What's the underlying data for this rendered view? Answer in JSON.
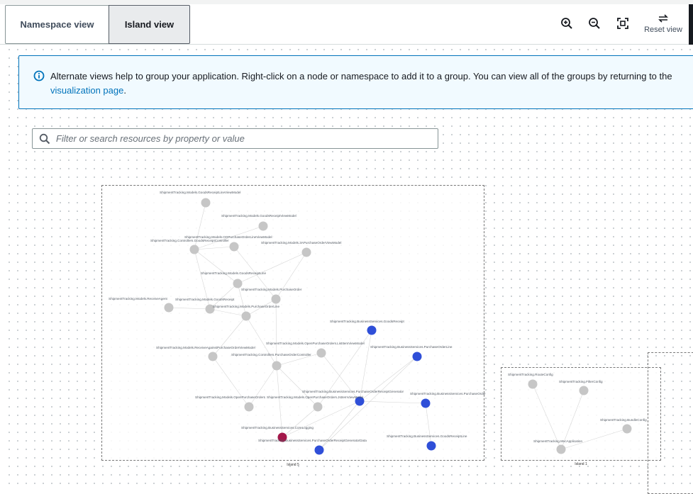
{
  "tabs": [
    {
      "label": "Namespace view",
      "selected": false
    },
    {
      "label": "Island view",
      "selected": true
    }
  ],
  "toolbar": {
    "zoom_in": "zoom-in-icon",
    "zoom_out": "zoom-out-icon",
    "fit": "fit-view-icon",
    "reset_label": "Reset view"
  },
  "info": {
    "text": "Alternate views help to group your application. Right-click on a node or namespace to add it to a group. You can view all of the groups by returning to the",
    "link": "visualization page",
    "suffix": "."
  },
  "search": {
    "placeholder": "Filter or search resources by property or value",
    "value": ""
  },
  "colors": {
    "accent": "#0073bb",
    "node_gray": "#c6c6c6",
    "node_blue": "#2f4fd8",
    "node_red": "#a3174a"
  },
  "islands": [
    {
      "name": "Island 5",
      "nodes": [
        {
          "label": "ShipmentTracking.Models.GoodsReceiptLineViewModel",
          "color": "gray"
        },
        {
          "label": "ShipmentTracking.Models.GoodsReceiptViewModel",
          "color": "gray"
        },
        {
          "label": "ShipmentTracking.Models.OOPurchaseOrderLineViewModel",
          "color": "gray"
        },
        {
          "label": "ShipmentTracking.Controllers.GoodsReceiptController",
          "color": "gray"
        },
        {
          "label": "ShipmentTracking.Models.3APurchaseOrderViewModel",
          "color": "gray"
        },
        {
          "label": "ShipmentTracking.Models.GoodsReceiptLine",
          "color": "gray"
        },
        {
          "label": "ShipmentTracking.Models.PurchaseOrder",
          "color": "gray"
        },
        {
          "label": "ShipmentTracking.Models.ReceiveAgent",
          "color": "gray"
        },
        {
          "label": "ShipmentTracking.Models.GoodsReceipt",
          "color": "gray"
        },
        {
          "label": "ShipmentTracking.Models.PurchaseOrderLine",
          "color": "gray"
        },
        {
          "label": "ShipmentTracking.BusinessServices.GoodsReceipt",
          "color": "blue"
        },
        {
          "label": "ShipmentTracking.Models.OpenPurchaseOrders.ListItemViewModel",
          "color": "gray"
        },
        {
          "label": "ShipmentTracking.BusinessServices.PurchaseOrderLine",
          "color": "blue"
        },
        {
          "label": "ShipmentTracking.Models.ReceiveAgainstPurchaseOrderViewModel",
          "color": "gray"
        },
        {
          "label": "ShipmentTracking.Controllers.PurchaseOrderController",
          "color": "gray"
        },
        {
          "label": "ShipmentTracking.BusinessServices.PurchaseOrderReceiptGenerator",
          "color": "blue"
        },
        {
          "label": "ShipmentTracking.BusinessServices.PurchaseOrder",
          "color": "blue"
        },
        {
          "label": "ShipmentTracking.Models.OpenPurchaseOrders",
          "color": "gray"
        },
        {
          "label": "ShipmentTracking.Models.OpenPurchaseOrders.JsItemViewModel",
          "color": "gray"
        },
        {
          "label": "ShipmentTracking.BusinessServices.CoreLogging",
          "color": "red"
        },
        {
          "label": "ShipmentTracking.BusinessServices.PurchaseOrderReceiptGeneratorData",
          "color": "blue"
        },
        {
          "label": "ShipmentTracking.BusinessServices.GoodsReceiptLine",
          "color": "blue"
        }
      ]
    },
    {
      "name": "Island 1",
      "nodes": [
        {
          "label": "ShipmentTracking.RouteConfig",
          "color": "gray"
        },
        {
          "label": "ShipmentTracking.FilterConfig",
          "color": "gray"
        },
        {
          "label": "ShipmentTracking.BundleConfig",
          "color": "gray"
        },
        {
          "label": "ShipmentTracking.MvcApplication",
          "color": "gray"
        }
      ]
    }
  ]
}
